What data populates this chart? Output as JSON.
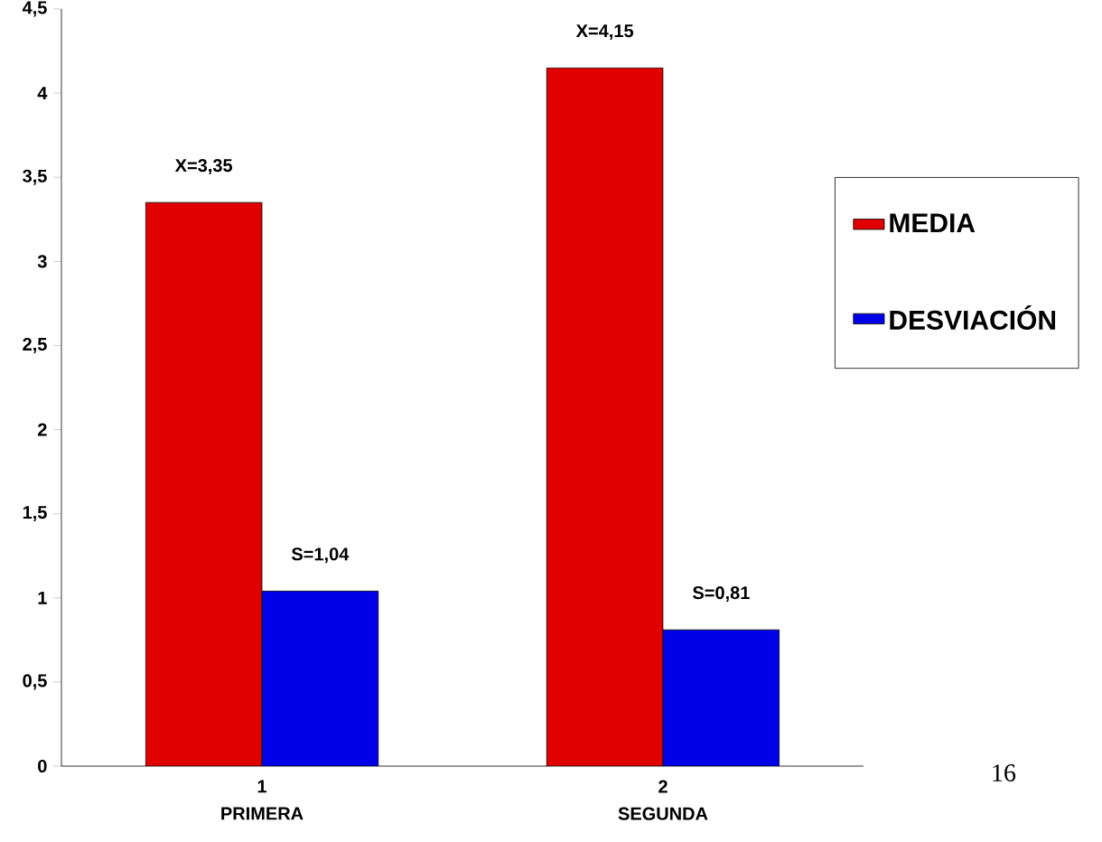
{
  "chart_data": {
    "type": "bar",
    "categories": [
      "1",
      "2"
    ],
    "series": [
      {
        "name": "MEDIA",
        "color": "#e00000",
        "values": [
          3.35,
          4.15
        ],
        "value_labels": [
          "X=3,35",
          "X=4,15"
        ]
      },
      {
        "name": "DESVIACIÓN",
        "color": "#0000e8",
        "values": [
          1.04,
          0.81
        ],
        "value_labels": [
          "S=1,04",
          "S=0,81"
        ]
      }
    ],
    "ylim": [
      0,
      4.5
    ],
    "yticks": [
      0,
      {
        "value": 0.5,
        "label": "0,5"
      },
      1,
      {
        "value": 1.5,
        "label": "1,5"
      },
      2,
      {
        "value": 2.5,
        "label": "2,5"
      },
      3,
      {
        "value": 3.5,
        "label": "3,5"
      },
      4,
      {
        "value": 4.5,
        "label": "4,5"
      }
    ],
    "legend": "right",
    "grid": false,
    "annotations": [
      "PRIMERA",
      "SEGUNDA",
      "16"
    ]
  }
}
